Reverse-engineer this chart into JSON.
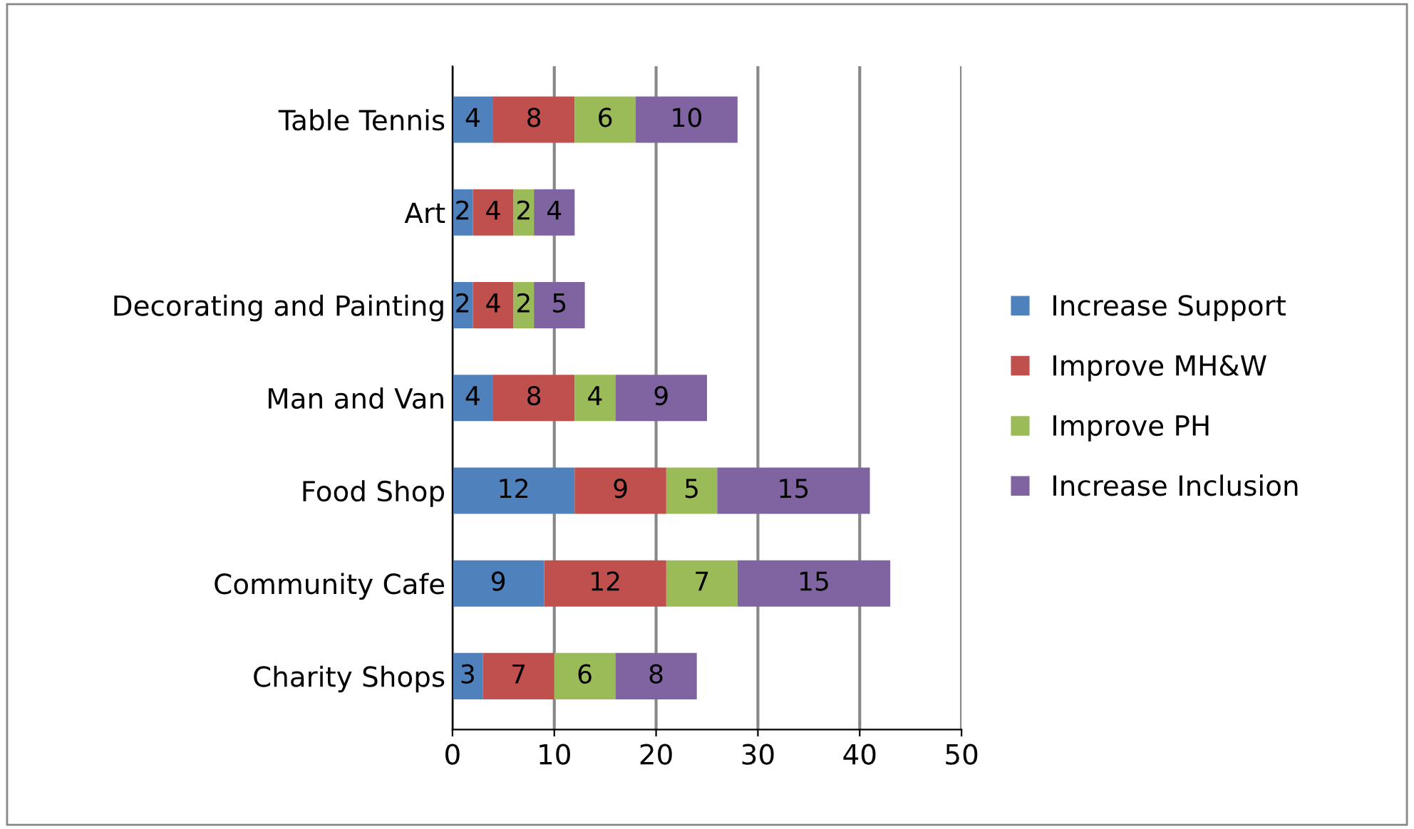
{
  "chart_data": {
    "type": "bar",
    "orientation": "horizontal",
    "stacked": true,
    "categories": [
      "Table Tennis",
      "Art",
      "Decorating and Painting",
      "Man and Van",
      "Food Shop",
      "Community Cafe",
      "Charity Shops"
    ],
    "series": [
      {
        "name": "Increase Support",
        "color": "#4f81bd",
        "values": [
          4,
          2,
          2,
          4,
          12,
          9,
          3
        ]
      },
      {
        "name": "Improve MH&W",
        "color": "#c0504d",
        "values": [
          8,
          4,
          4,
          8,
          9,
          12,
          7
        ]
      },
      {
        "name": "Improve PH",
        "color": "#9bbb59",
        "values": [
          6,
          2,
          2,
          4,
          5,
          7,
          6
        ]
      },
      {
        "name": "Increase Inclusion",
        "color": "#8064a2",
        "values": [
          10,
          4,
          5,
          9,
          15,
          15,
          8
        ]
      }
    ],
    "xlim": [
      0,
      50
    ],
    "xticks": [
      0,
      10,
      20,
      30,
      40,
      50
    ],
    "grid": "x",
    "legend": "right",
    "data_labels": true
  }
}
